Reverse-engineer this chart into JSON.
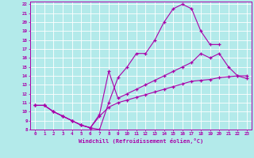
{
  "xlabel": "Windchill (Refroidissement éolien,°C)",
  "bg_color": "#b3eaea",
  "line_color": "#aa00aa",
  "grid_color": "#ffffff",
  "xlim": [
    -0.5,
    23.5
  ],
  "ylim": [
    8,
    22.3
  ],
  "xticks": [
    0,
    1,
    2,
    3,
    4,
    5,
    6,
    7,
    8,
    9,
    10,
    11,
    12,
    13,
    14,
    15,
    16,
    17,
    18,
    19,
    20,
    21,
    22,
    23
  ],
  "yticks": [
    8,
    9,
    10,
    11,
    12,
    13,
    14,
    15,
    16,
    17,
    18,
    19,
    20,
    21,
    22
  ],
  "lines": [
    {
      "x": [
        0,
        1,
        2,
        3,
        4,
        5,
        6,
        7,
        8,
        9,
        10,
        11,
        12,
        13,
        14,
        15,
        16,
        17,
        18,
        19,
        20
      ],
      "y": [
        10.7,
        10.7,
        10.0,
        9.5,
        9.0,
        8.5,
        8.2,
        8.0,
        11.0,
        13.8,
        15.0,
        16.5,
        16.5,
        18.0,
        20.0,
        21.5,
        22.0,
        21.5,
        19.0,
        17.5,
        17.5
      ]
    },
    {
      "x": [
        0,
        1,
        2,
        3,
        4,
        5,
        6,
        7,
        8,
        9,
        10,
        11,
        12,
        13,
        14,
        15,
        16,
        17,
        18,
        19,
        20,
        21,
        22,
        23
      ],
      "y": [
        10.7,
        10.7,
        10.0,
        9.5,
        9.0,
        8.5,
        8.2,
        9.7,
        14.5,
        11.5,
        12.0,
        12.5,
        13.0,
        13.5,
        14.0,
        14.5,
        15.0,
        15.5,
        16.5,
        16.0,
        16.5,
        15.0,
        14.0,
        14.0
      ]
    },
    {
      "x": [
        0,
        1,
        2,
        3,
        4,
        5,
        6,
        7,
        8,
        9,
        10,
        11,
        12,
        13,
        14,
        15,
        16,
        17,
        18,
        19,
        20,
        21,
        22,
        23
      ],
      "y": [
        10.7,
        10.7,
        10.0,
        9.5,
        9.0,
        8.5,
        8.2,
        9.5,
        10.5,
        11.0,
        11.3,
        11.6,
        11.9,
        12.2,
        12.5,
        12.8,
        13.1,
        13.4,
        13.5,
        13.6,
        13.8,
        13.9,
        14.0,
        13.7
      ]
    }
  ]
}
